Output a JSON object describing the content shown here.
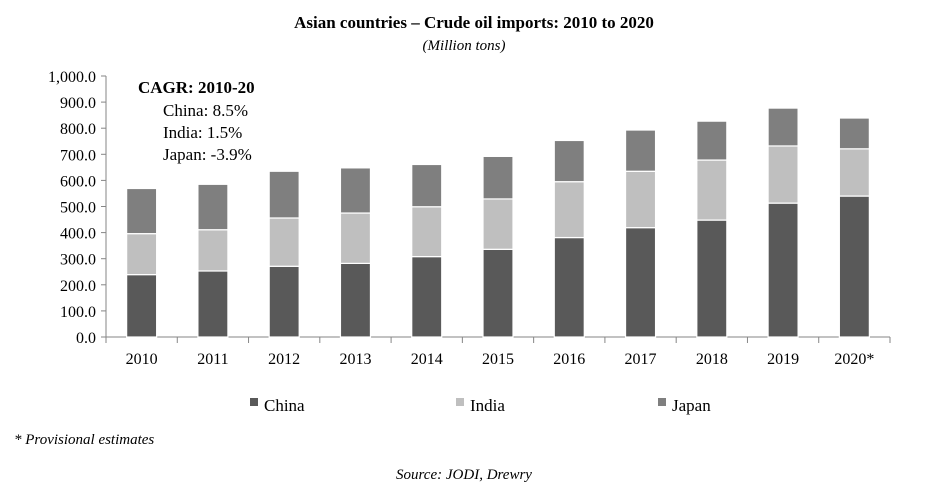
{
  "chart_data": {
    "type": "bar",
    "stacked": true,
    "title": "Asian countries – Crude oil imports: 2010 to 2020",
    "subtitle": "(Million tons)",
    "xlabel": "",
    "ylabel": "",
    "ylim": [
      0,
      1000
    ],
    "yticks": [
      "0.0",
      "100.0",
      "200.0",
      "300.0",
      "400.0",
      "500.0",
      "600.0",
      "700.0",
      "800.0",
      "900.0",
      "1,000.0"
    ],
    "grid": false,
    "legend_position": "bottom",
    "categories": [
      "2010",
      "2011",
      "2012",
      "2013",
      "2014",
      "2015",
      "2016",
      "2017",
      "2018",
      "2019",
      "2020*"
    ],
    "series": [
      {
        "name": "China",
        "color": "#595959",
        "values": [
          239,
          253,
          271,
          282,
          308,
          336,
          381,
          419,
          448,
          513,
          540
        ]
      },
      {
        "name": "India",
        "color": "#bfbfbf",
        "values": [
          157,
          158,
          185,
          193,
          191,
          193,
          214,
          216,
          230,
          219,
          181
        ]
      },
      {
        "name": "Japan",
        "color": "#7f7f7f",
        "values": [
          173,
          174,
          179,
          173,
          162,
          163,
          158,
          158,
          149,
          145,
          118
        ]
      }
    ],
    "annotation": {
      "title": "CAGR: 2010-20",
      "lines": [
        "China: 8.5%",
        "India: 1.5%",
        "Japan: -3.9%"
      ]
    }
  },
  "footnote": "* Provisional estimates",
  "source": "Source: JODI, Drewry"
}
